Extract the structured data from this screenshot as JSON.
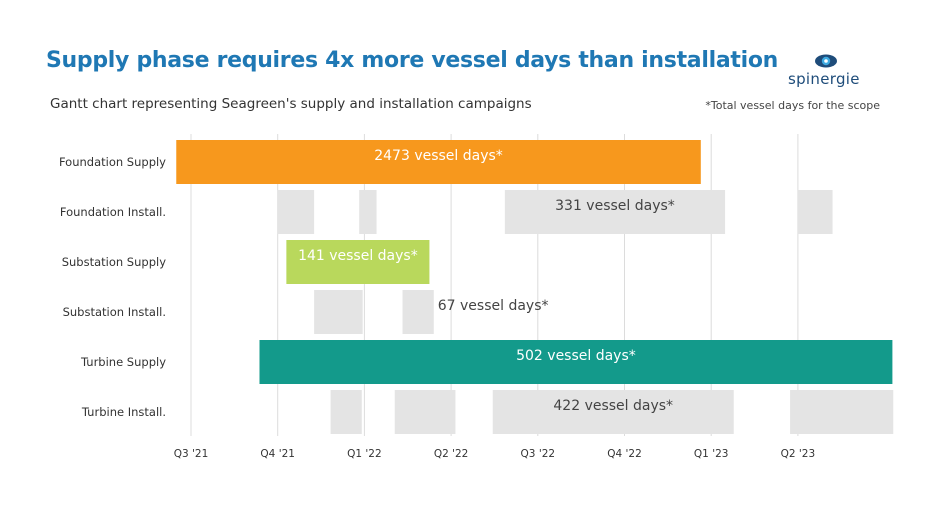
{
  "header": {
    "title": "Supply phase requires 4x more vessel days than installation",
    "subtitle": "Gantt chart representing Seagreen's supply and installation campaigns",
    "note": "*Total vessel days for the scope",
    "logo_text": "spinergie"
  },
  "colors": {
    "title": "#1f78b4",
    "foundation_supply": "#f7981d",
    "substation_supply": "#b9d85c",
    "turbine_supply": "#139a8b",
    "installation": "#e4e4e4",
    "grid": "#dcdcdc"
  },
  "chart_data": {
    "type": "gantt",
    "title": "Supply phase requires 4x more vessel days than installation",
    "subtitle": "Gantt chart representing Seagreen's supply and installation campaigns",
    "x_ticks": [
      "Q3 '21",
      "Q4 '21",
      "Q1 '22",
      "Q2 '22",
      "Q3 '22",
      "Q4 '22",
      "Q1 '23",
      "Q2 '23"
    ],
    "xlim": [
      0,
      8.1
    ],
    "rows": [
      {
        "name": "Foundation Supply",
        "kind": "supply",
        "label": "2473 vessel days*",
        "segments": [
          [
            -0.17,
            5.88
          ]
        ]
      },
      {
        "name": "Foundation Install.",
        "kind": "install",
        "label": "331 vessel days*",
        "segments": [
          [
            1.0,
            1.42
          ],
          [
            1.94,
            2.14
          ],
          [
            3.62,
            6.16
          ],
          [
            7.0,
            7.4
          ]
        ]
      },
      {
        "name": "Substation Supply",
        "kind": "supply",
        "label": "141 vessel days*",
        "segments": [
          [
            1.1,
            2.75
          ]
        ]
      },
      {
        "name": "Substation Install.",
        "kind": "install",
        "label": "67 vessel days*",
        "segments": [
          [
            1.42,
            1.98
          ],
          [
            2.44,
            2.8
          ]
        ]
      },
      {
        "name": "Turbine Supply",
        "kind": "supply",
        "label": "502 vessel days*",
        "segments": [
          [
            0.79,
            8.09
          ]
        ]
      },
      {
        "name": "Turbine Install.",
        "kind": "install",
        "label": "422 vessel days*",
        "segments": [
          [
            1.61,
            1.97
          ],
          [
            2.35,
            3.05
          ],
          [
            3.48,
            6.26
          ],
          [
            6.91,
            8.1
          ]
        ]
      }
    ]
  }
}
